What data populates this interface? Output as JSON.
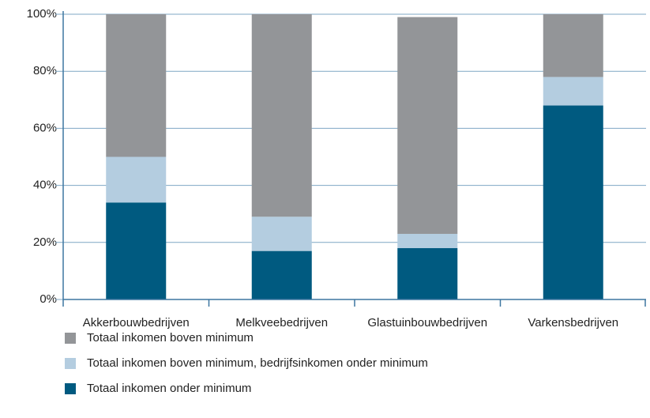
{
  "chart_data": {
    "type": "stacked_bar",
    "categories": [
      "Akkerbouwbedrijven",
      "Melkveebedrijven",
      "Glastuinbouwbedrijven",
      "Varkensbedrijven"
    ],
    "series": [
      {
        "name": "Totaal inkomen onder minimum",
        "color": "#005a80",
        "values": [
          34,
          17,
          18,
          68
        ]
      },
      {
        "name": "Totaal inkomen boven minimum, bedrijfsinkomen onder minimum",
        "color": "#b4cde0",
        "values": [
          16,
          12,
          5,
          10
        ]
      },
      {
        "name": "Totaal inkomen boven minimum",
        "color": "#939598",
        "values": [
          50,
          71,
          76,
          22
        ]
      }
    ],
    "ylim": [
      0,
      100
    ],
    "yticks": [
      {
        "value": 0,
        "label": "0%"
      },
      {
        "value": 20,
        "label": "20%"
      },
      {
        "value": 40,
        "label": "40%"
      },
      {
        "value": 60,
        "label": "60%"
      },
      {
        "value": 80,
        "label": "80%"
      },
      {
        "value": 100,
        "label": "100%"
      }
    ],
    "grid": true
  }
}
